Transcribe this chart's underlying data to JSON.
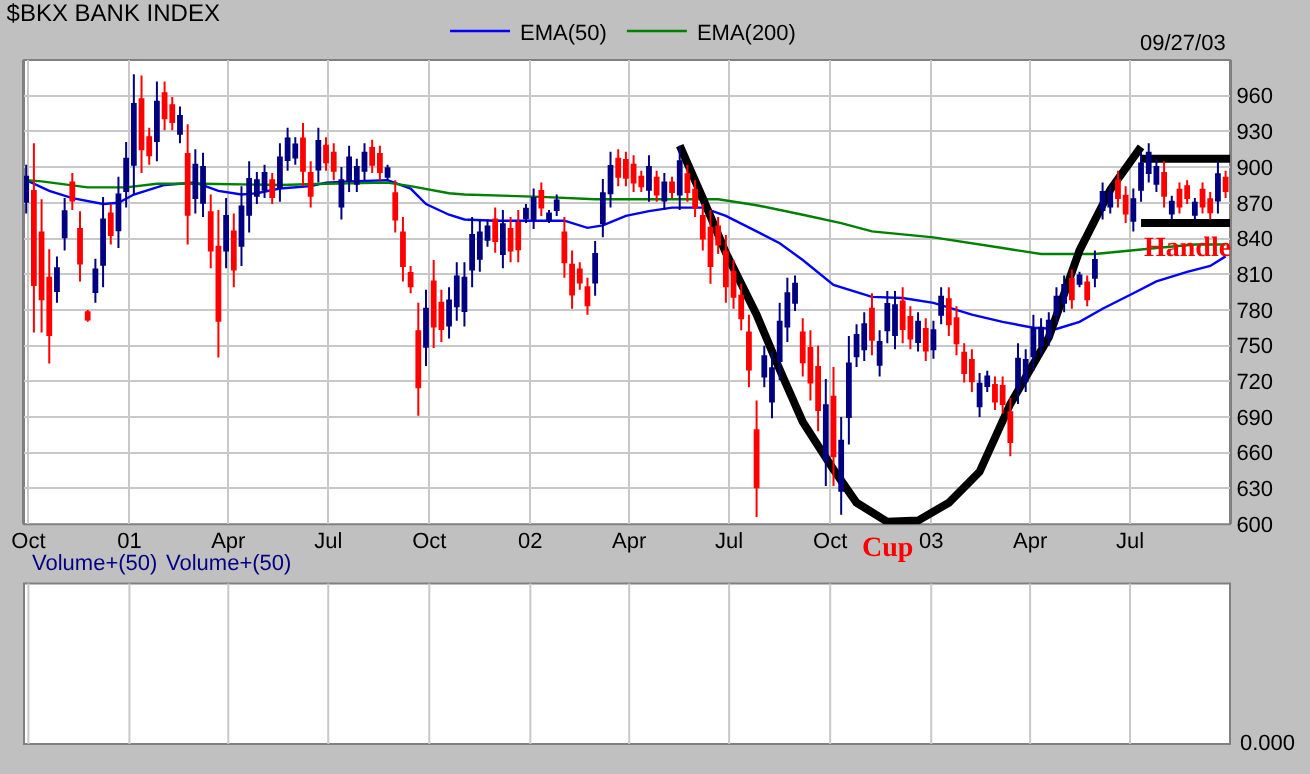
{
  "chart_data": {
    "type": "candlestick",
    "title": "$BKX BANK INDEX",
    "x": [
      "2000-09-29",
      "2000-10-06",
      "2000-10-13",
      "2000-10-20",
      "2000-10-27",
      "2000-11-03",
      "2000-11-10",
      "2000-11-17",
      "2000-11-24",
      "2000-12-01",
      "2000-12-08",
      "2000-12-15",
      "2000-12-22",
      "2000-12-29",
      "2001-01-05",
      "2001-01-12",
      "2001-01-19",
      "2001-01-26",
      "2001-02-02",
      "2001-02-09",
      "2001-02-16",
      "2001-02-23",
      "2001-03-02",
      "2001-03-09",
      "2001-03-16",
      "2001-03-23",
      "2001-03-30",
      "2001-04-06",
      "2001-04-13",
      "2001-04-20",
      "2001-04-27",
      "2001-05-04",
      "2001-05-11",
      "2001-05-18",
      "2001-05-25",
      "2001-06-01",
      "2001-06-08",
      "2001-06-15",
      "2001-06-22",
      "2001-06-29",
      "2001-07-06",
      "2001-07-13",
      "2001-07-20",
      "2001-07-27",
      "2001-08-03",
      "2001-08-10",
      "2001-08-17",
      "2001-08-24",
      "2001-08-31",
      "2001-09-07",
      "2001-09-14",
      "2001-09-21",
      "2001-09-28",
      "2001-10-05",
      "2001-10-12",
      "2001-10-19",
      "2001-10-26",
      "2001-11-02",
      "2001-11-09",
      "2001-11-16",
      "2001-11-23",
      "2001-11-30",
      "2001-12-07",
      "2001-12-14",
      "2001-12-21",
      "2001-12-28",
      "2002-01-04",
      "2002-01-11",
      "2002-01-18",
      "2002-01-25",
      "2002-02-01",
      "2002-02-08",
      "2002-02-15",
      "2002-02-22",
      "2002-03-01",
      "2002-03-08",
      "2002-03-15",
      "2002-03-22",
      "2002-03-29",
      "2002-04-05",
      "2002-04-12",
      "2002-04-19",
      "2002-04-26",
      "2002-05-03",
      "2002-05-10",
      "2002-05-17",
      "2002-05-24",
      "2002-05-31",
      "2002-06-07",
      "2002-06-14",
      "2002-06-21",
      "2002-06-28",
      "2002-07-05",
      "2002-07-12",
      "2002-07-19",
      "2002-07-26",
      "2002-08-02",
      "2002-08-09",
      "2002-08-16",
      "2002-08-23",
      "2002-08-30",
      "2002-09-06",
      "2002-09-13",
      "2002-09-20",
      "2002-09-27",
      "2002-10-04",
      "2002-10-11",
      "2002-10-18",
      "2002-10-25",
      "2002-11-01",
      "2002-11-08",
      "2002-11-15",
      "2002-11-22",
      "2002-11-29",
      "2002-12-06",
      "2002-12-13",
      "2002-12-20",
      "2002-12-27",
      "2003-01-03",
      "2003-01-10",
      "2003-01-17",
      "2003-01-24",
      "2003-01-31",
      "2003-02-07",
      "2003-02-14",
      "2003-02-21",
      "2003-02-28",
      "2003-03-07",
      "2003-03-14",
      "2003-03-21",
      "2003-03-28",
      "2003-04-04",
      "2003-04-11",
      "2003-04-18",
      "2003-04-25",
      "2003-05-02",
      "2003-05-09",
      "2003-05-16",
      "2003-05-23",
      "2003-05-30",
      "2003-06-06",
      "2003-06-13",
      "2003-06-20",
      "2003-06-27",
      "2003-07-04",
      "2003-07-11",
      "2003-07-18",
      "2003-07-25",
      "2003-08-01",
      "2003-08-08",
      "2003-08-15",
      "2003-08-22",
      "2003-08-29",
      "2003-09-05",
      "2003-09-12",
      "2003-09-19",
      "2003-09-26"
    ],
    "ohlc": [
      [
        871,
        902,
        861,
        892
      ],
      [
        880,
        920,
        761,
        801
      ],
      [
        845,
        873,
        761,
        789
      ],
      [
        807,
        831,
        735,
        759
      ],
      [
        796,
        825,
        786,
        815
      ],
      [
        841,
        874,
        830,
        863
      ],
      [
        887,
        895,
        864,
        872
      ],
      [
        848,
        863,
        804,
        819
      ],
      [
        778,
        780,
        770,
        772
      ],
      [
        795,
        823,
        786,
        814
      ],
      [
        818,
        875,
        799,
        856
      ],
      [
        861,
        869,
        835,
        843
      ],
      [
        847,
        892,
        832,
        877
      ],
      [
        880,
        921,
        866,
        907
      ],
      [
        902,
        978,
        877,
        953
      ],
      [
        957,
        977,
        895,
        915
      ],
      [
        925,
        933,
        902,
        910
      ],
      [
        922,
        972,
        905,
        955
      ],
      [
        962,
        972,
        931,
        941
      ],
      [
        952,
        959,
        931,
        938
      ],
      [
        928,
        951,
        920,
        943
      ],
      [
        911,
        936,
        835,
        860
      ],
      [
        874,
        915,
        861,
        902
      ],
      [
        870,
        912,
        858,
        900
      ],
      [
        862,
        877,
        815,
        830
      ],
      [
        833,
        864,
        740,
        771
      ],
      [
        830,
        874,
        815,
        859
      ],
      [
        846,
        861,
        799,
        814
      ],
      [
        834,
        884,
        817,
        867
      ],
      [
        860,
        905,
        845,
        890
      ],
      [
        876,
        896,
        869,
        889
      ],
      [
        881,
        902,
        874,
        895
      ],
      [
        889,
        895,
        869,
        875
      ],
      [
        883,
        920,
        871,
        908
      ],
      [
        906,
        933,
        897,
        924
      ],
      [
        908,
        925,
        902,
        919
      ],
      [
        924,
        937,
        884,
        897
      ],
      [
        895,
        905,
        866,
        876
      ],
      [
        898,
        933,
        887,
        922
      ],
      [
        918,
        925,
        897,
        904
      ],
      [
        912,
        920,
        889,
        897
      ],
      [
        867,
        900,
        856,
        889
      ],
      [
        889,
        918,
        879,
        908
      ],
      [
        886,
        907,
        879,
        900
      ],
      [
        897,
        920,
        889,
        912
      ],
      [
        916,
        923,
        895,
        902
      ],
      [
        911,
        918,
        889,
        896
      ],
      [
        892,
        902,
        889,
        899
      ],
      [
        878,
        889,
        845,
        856
      ],
      [
        845,
        858,
        804,
        817
      ],
      [
        811,
        817,
        794,
        800
      ],
      [
        762,
        786,
        691,
        715
      ],
      [
        749,
        797,
        733,
        781
      ],
      [
        804,
        822,
        748,
        766
      ],
      [
        786,
        797,
        753,
        764
      ],
      [
        767,
        799,
        756,
        788
      ],
      [
        783,
        820,
        771,
        808
      ],
      [
        779,
        820,
        766,
        807
      ],
      [
        814,
        858,
        799,
        843
      ],
      [
        823,
        856,
        812,
        845
      ],
      [
        839,
        856,
        833,
        850
      ],
      [
        856,
        866,
        828,
        838
      ],
      [
        827,
        864,
        815,
        852
      ],
      [
        848,
        858,
        820,
        830
      ],
      [
        853,
        864,
        820,
        831
      ],
      [
        857,
        869,
        853,
        865
      ],
      [
        856,
        882,
        848,
        874
      ],
      [
        880,
        887,
        859,
        866
      ],
      [
        856,
        864,
        853,
        861
      ],
      [
        864,
        877,
        859,
        872
      ],
      [
        845,
        858,
        807,
        820
      ],
      [
        818,
        830,
        781,
        793
      ],
      [
        814,
        820,
        797,
        803
      ],
      [
        799,
        807,
        776,
        784
      ],
      [
        803,
        838,
        792,
        827
      ],
      [
        853,
        890,
        841,
        878
      ],
      [
        878,
        913,
        866,
        901
      ],
      [
        907,
        915,
        884,
        892
      ],
      [
        906,
        913,
        884,
        891
      ],
      [
        902,
        910,
        879,
        887
      ],
      [
        892,
        897,
        879,
        884
      ],
      [
        881,
        910,
        871,
        900
      ],
      [
        891,
        897,
        871,
        877
      ],
      [
        872,
        895,
        864,
        887
      ],
      [
        887,
        892,
        874,
        879
      ],
      [
        877,
        918,
        864,
        905
      ],
      [
        894,
        902,
        871,
        879
      ],
      [
        881,
        889,
        858,
        866
      ],
      [
        859,
        869,
        830,
        840
      ],
      [
        849,
        864,
        802,
        817
      ],
      [
        850,
        858,
        827,
        835
      ],
      [
        829,
        843,
        786,
        800
      ],
      [
        812,
        822,
        781,
        791
      ],
      [
        792,
        802,
        763,
        773
      ],
      [
        761,
        776,
        715,
        730
      ],
      [
        679,
        704,
        606,
        631
      ],
      [
        724,
        750,
        715,
        741
      ],
      [
        703,
        745,
        689,
        731
      ],
      [
        737,
        786,
        721,
        770
      ],
      [
        766,
        807,
        753,
        794
      ],
      [
        786,
        809,
        779,
        802
      ],
      [
        761,
        773,
        724,
        736
      ],
      [
        748,
        763,
        704,
        719
      ],
      [
        732,
        750,
        678,
        696
      ],
      [
        654,
        722,
        632,
        700
      ],
      [
        707,
        732,
        632,
        657
      ],
      [
        628,
        690,
        608,
        670
      ],
      [
        690,
        758,
        667,
        735
      ],
      [
        741,
        768,
        732,
        759
      ],
      [
        747,
        778,
        737,
        768
      ],
      [
        781,
        794,
        742,
        755
      ],
      [
        734,
        763,
        724,
        753
      ],
      [
        763,
        796,
        752,
        785
      ],
      [
        759,
        796,
        747,
        784
      ],
      [
        787,
        799,
        752,
        764
      ],
      [
        774,
        783,
        747,
        756
      ],
      [
        753,
        778,
        745,
        770
      ],
      [
        764,
        773,
        737,
        746
      ],
      [
        747,
        771,
        739,
        763
      ],
      [
        776,
        799,
        768,
        791
      ],
      [
        789,
        799,
        758,
        768
      ],
      [
        773,
        783,
        742,
        752
      ],
      [
        744,
        752,
        719,
        727
      ],
      [
        738,
        747,
        711,
        720
      ],
      [
        699,
        727,
        690,
        718
      ],
      [
        716,
        729,
        711,
        724
      ],
      [
        717,
        724,
        696,
        703
      ],
      [
        716,
        724,
        693,
        701
      ],
      [
        694,
        706,
        657,
        669
      ],
      [
        714,
        752,
        701,
        739
      ],
      [
        720,
        747,
        711,
        738
      ],
      [
        741,
        776,
        729,
        764
      ],
      [
        750,
        773,
        742,
        765
      ],
      [
        757,
        778,
        750,
        771
      ],
      [
        776,
        799,
        768,
        791
      ],
      [
        786,
        809,
        778,
        801
      ],
      [
        806,
        814,
        781,
        789
      ],
      [
        802,
        812,
        799,
        809
      ],
      [
        803,
        809,
        783,
        789
      ],
      [
        807,
        830,
        799,
        822
      ],
      [
        864,
        887,
        856,
        879
      ],
      [
        867,
        884,
        861,
        878
      ],
      [
        889,
        897,
        866,
        874
      ],
      [
        876,
        884,
        853,
        861
      ],
      [
        855,
        882,
        846,
        873
      ],
      [
        881,
        913,
        871,
        903
      ],
      [
        895,
        920,
        887,
        912
      ],
      [
        886,
        907,
        879,
        900
      ],
      [
        895,
        905,
        866,
        876
      ],
      [
        861,
        876,
        856,
        871
      ],
      [
        881,
        887,
        861,
        867
      ],
      [
        884,
        889,
        869,
        874
      ],
      [
        860,
        874,
        856,
        870
      ],
      [
        881,
        887,
        861,
        867
      ],
      [
        873,
        879,
        856,
        862
      ],
      [
        872,
        905,
        861,
        894
      ],
      [
        891,
        897,
        874,
        880
      ]
    ],
    "colors": [
      "#000080",
      "#ff0000",
      "#ff0000",
      "#ff0000",
      "#000080",
      "#000080",
      "#ff0000",
      "#ff0000",
      "#ff0000",
      "#000080",
      "#000080",
      "#ff0000",
      "#000080",
      "#000080",
      "#000080",
      "#ff0000",
      "#ff0000",
      "#000080",
      "#ff0000",
      "#ff0000",
      "#000080",
      "#ff0000",
      "#000080",
      "#000080",
      "#ff0000",
      "#ff0000",
      "#000080",
      "#ff0000",
      "#000080",
      "#000080",
      "#000080",
      "#000080",
      "#ff0000",
      "#000080",
      "#000080",
      "#000080",
      "#ff0000",
      "#ff0000",
      "#000080",
      "#ff0000",
      "#ff0000",
      "#000080",
      "#000080",
      "#000080",
      "#000080",
      "#ff0000",
      "#ff0000",
      "#000080",
      "#ff0000",
      "#ff0000",
      "#ff0000",
      "#ff0000",
      "#000080",
      "#ff0000",
      "#ff0000",
      "#000080",
      "#000080",
      "#000080",
      "#000080",
      "#000080",
      "#000080",
      "#ff0000",
      "#000080",
      "#ff0000",
      "#ff0000",
      "#000080",
      "#000080",
      "#ff0000",
      "#000080",
      "#000080",
      "#ff0000",
      "#ff0000",
      "#ff0000",
      "#ff0000",
      "#000080",
      "#000080",
      "#000080",
      "#ff0000",
      "#ff0000",
      "#ff0000",
      "#ff0000",
      "#000080",
      "#ff0000",
      "#000080",
      "#ff0000",
      "#000080",
      "#ff0000",
      "#ff0000",
      "#ff0000",
      "#ff0000",
      "#ff0000",
      "#ff0000",
      "#ff0000",
      "#ff0000",
      "#ff0000",
      "#ff0000",
      "#000080",
      "#000080",
      "#000080",
      "#000080",
      "#000080",
      "#ff0000",
      "#ff0000",
      "#ff0000",
      "#000080",
      "#ff0000",
      "#000080",
      "#000080",
      "#000080",
      "#000080",
      "#ff0000",
      "#000080",
      "#000080",
      "#000080",
      "#ff0000",
      "#ff0000",
      "#000080",
      "#ff0000",
      "#000080",
      "#000080",
      "#ff0000",
      "#ff0000",
      "#ff0000",
      "#ff0000",
      "#000080",
      "#000080",
      "#ff0000",
      "#ff0000",
      "#ff0000",
      "#000080",
      "#000080",
      "#000080",
      "#000080",
      "#000080",
      "#000080",
      "#000080",
      "#ff0000",
      "#000080",
      "#ff0000",
      "#000080",
      "#000080",
      "#000080",
      "#ff0000",
      "#ff0000",
      "#000080",
      "#000080",
      "#000080",
      "#000080",
      "#ff0000",
      "#000080",
      "#ff0000",
      "#ff0000",
      "#000080",
      "#ff0000",
      "#ff0000",
      "#000080",
      "#ff0000"
    ],
    "series": [
      {
        "name": "EMA(50)",
        "type": "line",
        "color": "#0000ff",
        "x": [
          "2000-09-29",
          "2000-10-20",
          "2000-11-10",
          "2000-12-08",
          "2000-12-22",
          "2001-01-05",
          "2001-02-02",
          "2001-03-02",
          "2001-03-23",
          "2001-04-13",
          "2001-04-27",
          "2001-05-18",
          "2001-06-15",
          "2001-06-29",
          "2001-07-20",
          "2001-08-24",
          "2001-09-14",
          "2001-09-28",
          "2001-10-19",
          "2001-11-02",
          "2001-11-30",
          "2002-01-04",
          "2002-02-01",
          "2002-02-22",
          "2002-03-08",
          "2002-03-29",
          "2002-04-19",
          "2002-05-10",
          "2002-06-07",
          "2002-06-28",
          "2002-07-26",
          "2002-08-16",
          "2002-09-06",
          "2002-10-04",
          "2002-11-08",
          "2002-12-06",
          "2003-01-03",
          "2003-02-07",
          "2003-03-07",
          "2003-04-04",
          "2003-04-25",
          "2003-05-16",
          "2003-06-06",
          "2003-07-04",
          "2003-07-25",
          "2003-08-22",
          "2003-09-12",
          "2003-09-26"
        ],
        "values": [
          889,
          880,
          874,
          869,
          870,
          877,
          885,
          887,
          880,
          877,
          878,
          882,
          884,
          887,
          888,
          889,
          882,
          869,
          860,
          856,
          855,
          855,
          855,
          849,
          851,
          859,
          863,
          866,
          866,
          859,
          846,
          836,
          822,
          801,
          791,
          790,
          786,
          776,
          770,
          765,
          764,
          770,
          781,
          794,
          804,
          812,
          817,
          825
        ]
      },
      {
        "name": "EMA(200)",
        "type": "line",
        "color": "#008000",
        "x": [
          "2000-09-29",
          "2000-10-13",
          "2000-11-24",
          "2000-12-29",
          "2001-01-26",
          "2001-03-09",
          "2001-05-18",
          "2001-06-29",
          "2001-08-24",
          "2001-09-14",
          "2001-10-19",
          "2001-11-02",
          "2002-01-11",
          "2002-03-01",
          "2002-05-03",
          "2002-06-21",
          "2002-07-26",
          "2002-09-06",
          "2002-10-11",
          "2002-11-08",
          "2003-01-03",
          "2003-03-07",
          "2003-04-11",
          "2003-05-30",
          "2003-07-25",
          "2003-08-29",
          "2003-09-26"
        ],
        "values": [
          889,
          888,
          883,
          883,
          886,
          886,
          885,
          886,
          887,
          884,
          878,
          877,
          875,
          873,
          873,
          873,
          868,
          860,
          853,
          846,
          841,
          832,
          827,
          827,
          832,
          835,
          835
        ]
      },
      {
        "type": "line",
        "color": "#000000",
        "x": [
          "2002-05-17",
          "2002-06-07",
          "2002-06-28",
          "2002-07-26",
          "2002-08-16",
          "2002-09-06",
          "2002-10-04",
          "2002-10-25",
          "2002-11-22",
          "2002-12-20",
          "2003-01-17",
          "2003-02-14",
          "2003-03-14",
          "2003-04-18",
          "2003-05-16",
          "2003-06-13",
          "2003-07-11"
        ],
        "values": [
          918,
          874,
          828,
          776,
          730,
          686,
          646,
          618,
          602,
          603,
          618,
          644,
          701,
          757,
          830,
          881,
          917
        ]
      },
      {
        "type": "line",
        "color": "#000000",
        "x": [
          "2003-07-11",
          "2003-09-30"
        ],
        "values": [
          907,
          907
        ]
      },
      {
        "type": "line",
        "color": "#000000",
        "x": [
          "2003-07-11",
          "2003-09-30"
        ],
        "values": [
          853,
          853
        ]
      }
    ],
    "annotations": [
      "09/27/03",
      "Volume+(50)",
      "Volume+(50)",
      "0.000",
      {
        "text": "Cup",
        "x": "2002-11-22",
        "y": 600
      },
      {
        "text": "Handle",
        "x": "2003-08-22",
        "y": 853
      }
    ],
    "xlim": [
      "2000-09-27",
      "2003-09-30"
    ],
    "xticks": [
      {
        "value": "2000-10-01",
        "label": "Oct"
      },
      {
        "value": "2001-01-01",
        "label": "01"
      },
      {
        "value": "2001-04-01",
        "label": "Apr"
      },
      {
        "value": "2001-07-01",
        "label": "Jul"
      },
      {
        "value": "2001-10-01",
        "label": "Oct"
      },
      {
        "value": "2002-01-01",
        "label": "02"
      },
      {
        "value": "2002-04-01",
        "label": "Apr"
      },
      {
        "value": "2002-07-01",
        "label": "Jul"
      },
      {
        "value": "2002-10-01",
        "label": "Oct"
      },
      {
        "value": "2003-01-01",
        "label": "03"
      },
      {
        "value": "2003-04-01",
        "label": "Apr"
      },
      {
        "value": "2003-07-01",
        "label": "Jul"
      }
    ],
    "ylim": [
      600,
      990
    ],
    "yticks": [
      600,
      630,
      660,
      690,
      720,
      750,
      780,
      810,
      840,
      870,
      900,
      930,
      960
    ],
    "grid": true,
    "legend": "top left"
  }
}
